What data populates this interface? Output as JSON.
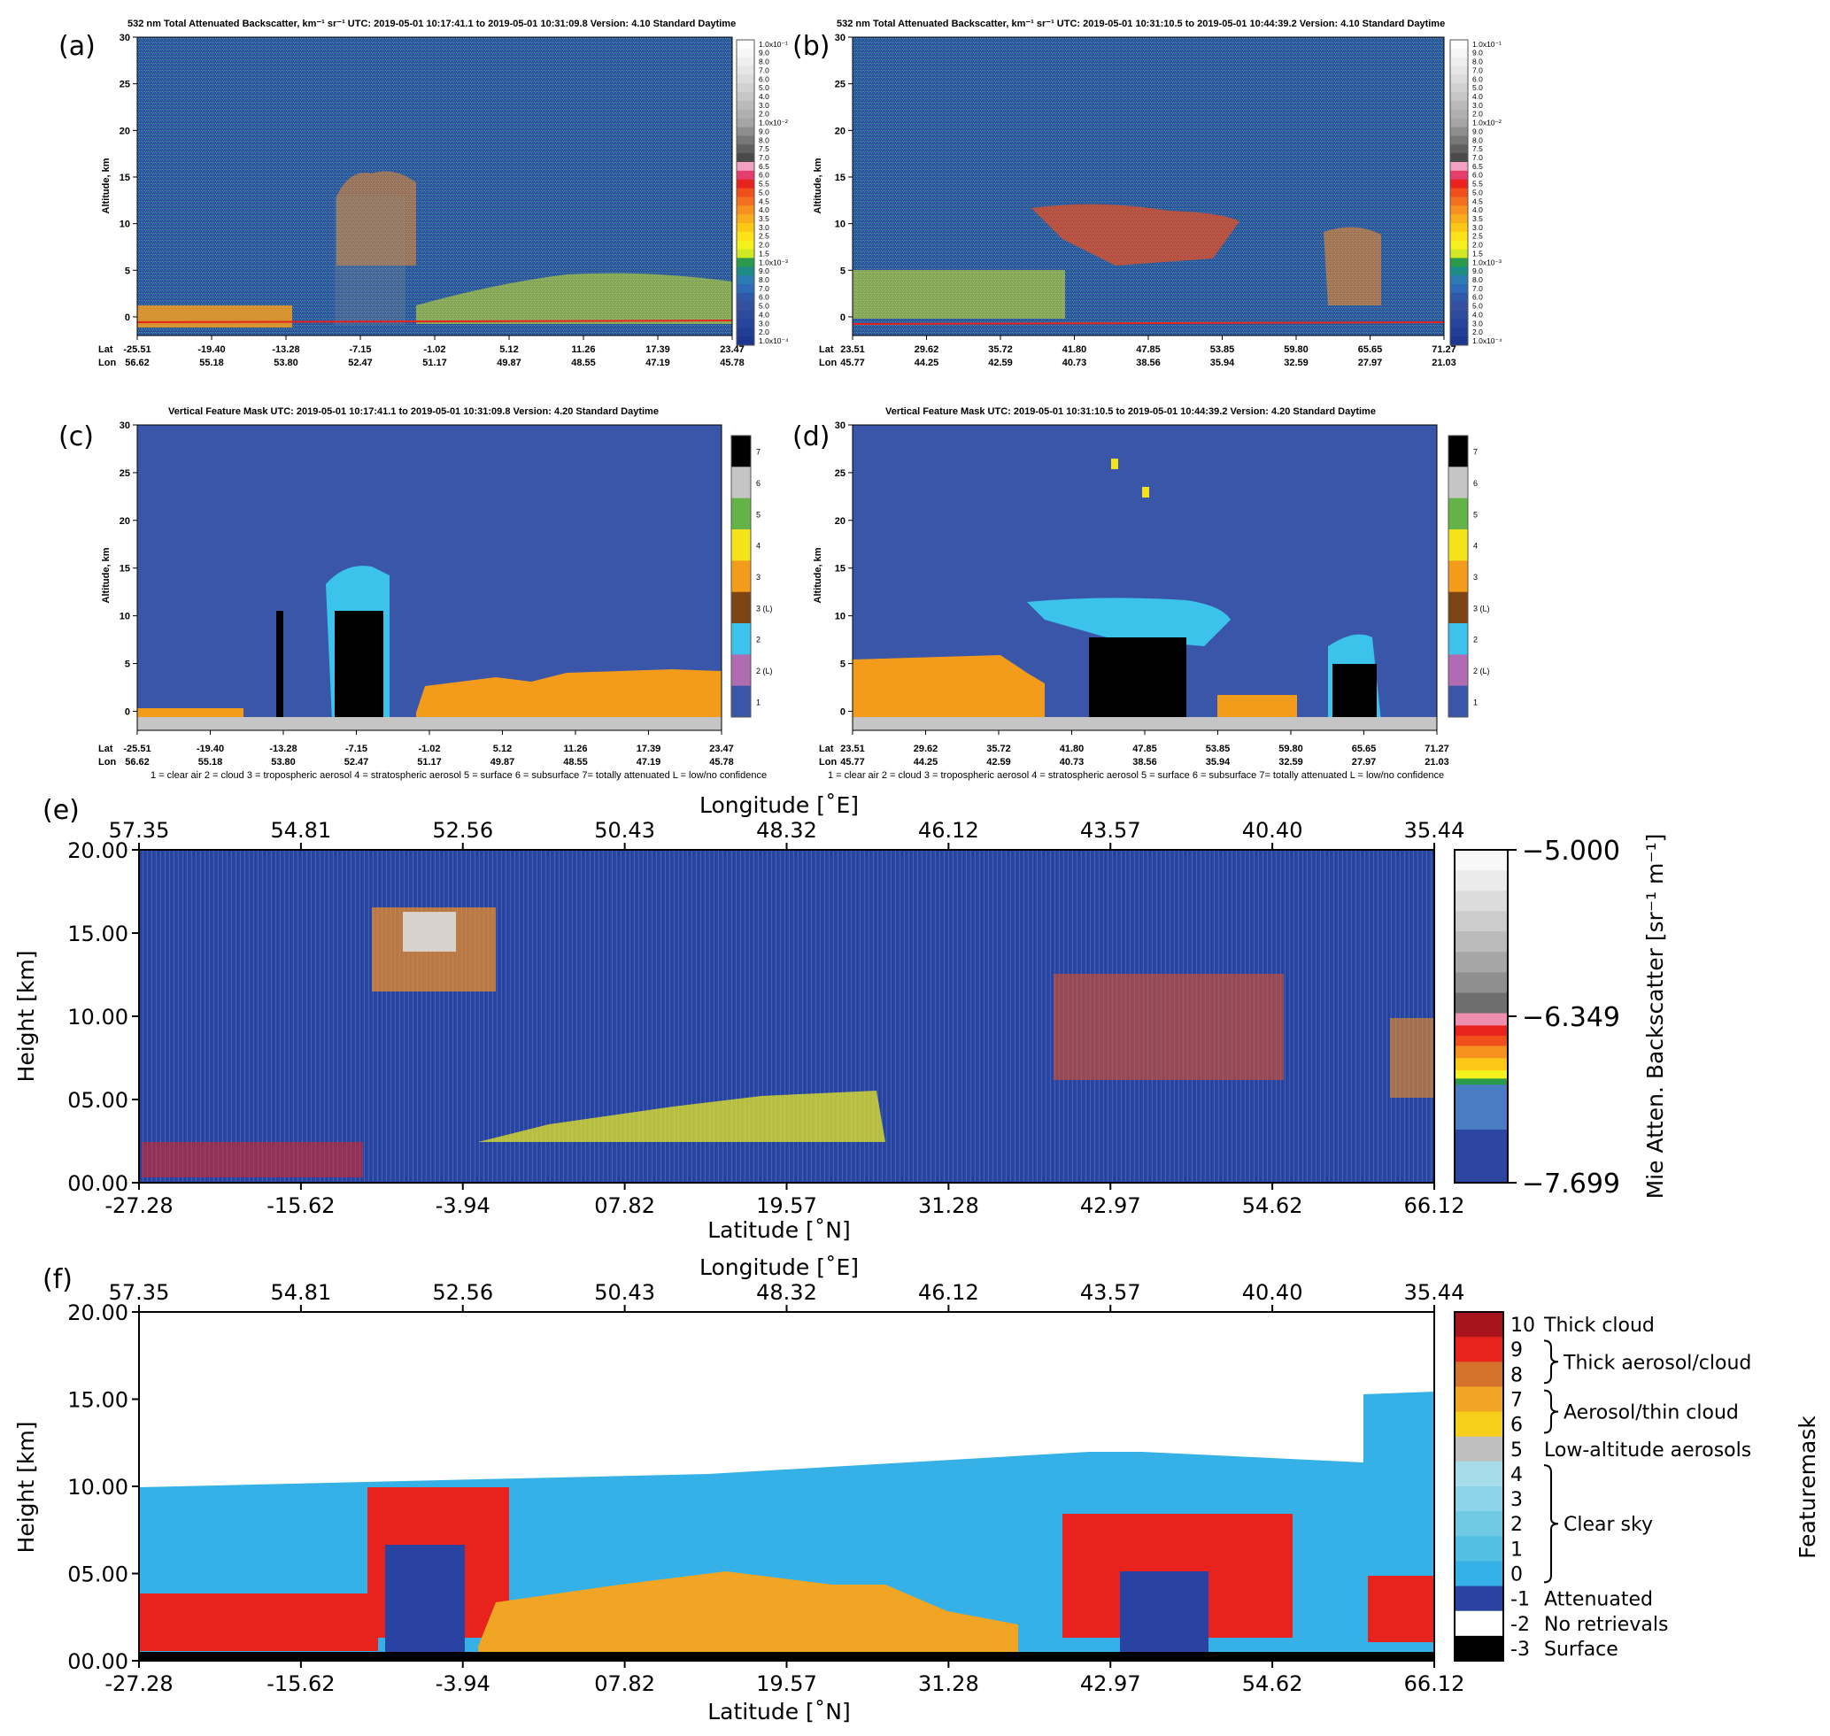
{
  "chart_data": [
    {
      "panel": "(a)",
      "type": "heatmap",
      "title": "532 nm Total Attenuated Backscatter, km⁻¹ sr⁻¹    UTC:  2019-05-01 10:17:41.1  to  2019-05-01 10:31:09.8    Version: 4.10  Standard  Daytime",
      "ylabel": "Altitude, km",
      "ylim": [
        -2,
        30
      ],
      "yticks": [
        "0",
        "5",
        "10",
        "15",
        "20",
        "25",
        "30"
      ],
      "row_lat": "Lat",
      "row_lon": "Lon",
      "lat": [
        "-25.51",
        "-19.40",
        "-13.28",
        "-7.15",
        "-1.02",
        "5.12",
        "11.26",
        "17.39",
        "23.47"
      ],
      "lon": [
        "56.62",
        "55.18",
        "53.80",
        "52.47",
        "51.17",
        "49.87",
        "48.55",
        "47.19",
        "45.78"
      ]
    },
    {
      "panel": "(b)",
      "type": "heatmap",
      "title": "532 nm Total Attenuated Backscatter, km⁻¹ sr⁻¹    UTC:  2019-05-01 10:31:10.5  to  2019-05-01 10:44:39.2    Version: 4.10  Standard  Daytime",
      "ylabel": "Altitude, km",
      "ylim": [
        -2,
        30
      ],
      "yticks": [
        "0",
        "5",
        "10",
        "15",
        "20",
        "25",
        "30"
      ],
      "row_lat": "Lat",
      "row_lon": "Lon",
      "lat": [
        "23.51",
        "29.62",
        "35.72",
        "41.80",
        "47.85",
        "53.85",
        "59.80",
        "65.65",
        "71.27"
      ],
      "lon": [
        "45.77",
        "44.25",
        "42.59",
        "40.73",
        "38.56",
        "35.94",
        "32.59",
        "27.97",
        "21.03"
      ]
    },
    {
      "panel": "(c)",
      "type": "heatmap",
      "title": "Vertical Feature Mask    UTC:  2019-05-01  10:17:41.1  to  2019-05-01  10:31:09.8    Version: 4.20  Standard Daytime",
      "ylabel": "Altitude, km",
      "ylim": [
        -2,
        30
      ],
      "yticks": [
        "0",
        "5",
        "10",
        "15",
        "20",
        "25",
        "30"
      ],
      "row_lat": "Lat",
      "row_lon": "Lon",
      "lat": [
        "-25.51",
        "-19.40",
        "-13.28",
        "-7.15",
        "-1.02",
        "5.12",
        "11.26",
        "17.39",
        "23.47"
      ],
      "lon": [
        "56.62",
        "55.18",
        "53.80",
        "52.47",
        "51.17",
        "49.87",
        "48.55",
        "47.19",
        "45.78"
      ],
      "footnote": "1 = clear air    2 = cloud    3 = tropospheric aerosol    4 = stratospheric aerosol    5 = surface    6 = subsurface    7= totally attenuated    L = low/no confidence"
    },
    {
      "panel": "(d)",
      "type": "heatmap",
      "title": "Vertical Feature Mask    UTC:  2019-05-01  10:31:10.5  to  2019-05-01  10:44:39.2    Version: 4.20  Standard Daytime",
      "ylabel": "Altitude, km",
      "ylim": [
        -2,
        30
      ],
      "yticks": [
        "0",
        "5",
        "10",
        "15",
        "20",
        "25",
        "30"
      ],
      "row_lat": "Lat",
      "row_lon": "Lon",
      "lat": [
        "23.51",
        "29.62",
        "35.72",
        "41.80",
        "47.85",
        "53.85",
        "59.80",
        "65.65",
        "71.27"
      ],
      "lon": [
        "45.77",
        "44.25",
        "42.59",
        "40.73",
        "38.56",
        "35.94",
        "32.59",
        "27.97",
        "21.03"
      ],
      "footnote": "1 = clear air    2 = cloud    3 = tropospheric aerosol    4 = stratospheric aerosol    5 = surface    6 = subsurface    7= totally attenuated    L = low/no confidence"
    },
    {
      "panel": "(e)",
      "type": "heatmap",
      "top_xlabel": "Longitude [˚E]",
      "lon_ticks": [
        "57.35",
        "54.81",
        "52.56",
        "50.43",
        "48.32",
        "46.12",
        "43.57",
        "40.40",
        "35.44"
      ],
      "xlabel": "Latitude [˚N]",
      "lat_ticks": [
        "-27.28",
        "-15.62",
        "-3.94",
        "07.82",
        "19.57",
        "31.28",
        "42.97",
        "54.62",
        "66.12"
      ],
      "ylabel": "Height [km]",
      "ylim": [
        0,
        20
      ],
      "yticks": [
        "00.00",
        "05.00",
        "10.00",
        "15.00",
        "20.00"
      ],
      "colorbar": {
        "label": "Mie Atten. Backscatter [sr⁻¹ m⁻¹]",
        "ticks": [
          "−5.000",
          "−6.349",
          "−7.699"
        ]
      }
    },
    {
      "panel": "(f)",
      "type": "heatmap",
      "top_xlabel": "Longitude [˚E]",
      "lon_ticks": [
        "57.35",
        "54.81",
        "52.56",
        "50.43",
        "48.32",
        "46.12",
        "43.57",
        "40.40",
        "35.44"
      ],
      "xlabel": "Latitude [˚N]",
      "lat_ticks": [
        "-27.28",
        "-15.62",
        "-3.94",
        "07.82",
        "19.57",
        "31.28",
        "42.97",
        "54.62",
        "66.12"
      ],
      "ylabel": "Height [km]",
      "ylim": [
        0,
        20
      ],
      "yticks": [
        "00.00",
        "05.00",
        "10.00",
        "15.00",
        "20.00"
      ],
      "colorbar": {
        "label": "Featuremask",
        "values": [
          "10",
          "9",
          "8",
          "7",
          "6",
          "5",
          "4",
          "3",
          "2",
          "1",
          "0",
          "-1",
          "-2",
          "-3"
        ],
        "colors": [
          "#a8141c",
          "#e8231d",
          "#d4722c",
          "#f0a624",
          "#f5cf19",
          "#bfbfbf",
          "#a7ddea",
          "#8bd3e6",
          "#6fc9e3",
          "#53bfe3",
          "#35b1e8",
          "#2a43a3",
          "#ffffff",
          "#000000"
        ],
        "classes": [
          "Thick cloud",
          "Thick aerosol/cloud",
          "Aerosol/thin cloud",
          "Low-altitude aerosols",
          "Clear sky",
          "Attenuated",
          "No retrievals",
          "Surface"
        ]
      }
    }
  ],
  "panel_labels": [
    "(a)",
    "(b)",
    "(c)",
    "(d)",
    "(e)",
    "(f)"
  ],
  "colors": {
    "bg_blue": "#2f45a2",
    "mask_blue": "#3a56a8",
    "cloud_cyan": "#3cc3ec",
    "aerosol_orange": "#f39c1c",
    "attenuated_black": "#000000",
    "surface_grey": "#c5c5c5",
    "red": "#e8231d",
    "yellow": "#f5e31a",
    "green": "#2aa14a"
  },
  "calipso_colorbar": {
    "labels": [
      "1.0x10⁻¹",
      "9.0",
      "8.0",
      "7.0",
      "6.0",
      "5.0",
      "4.0",
      "3.0",
      "2.0",
      "1.0x10⁻²",
      "9.0",
      "8.0",
      "7.5",
      "7.0",
      "6.5",
      "6.0",
      "5.5",
      "5.0",
      "4.5",
      "4.0",
      "3.5",
      "3.0",
      "2.5",
      "2.0",
      "1.5",
      "1.0x10⁻³",
      "9.0",
      "8.0",
      "7.0",
      "6.0",
      "5.0",
      "4.0",
      "3.0",
      "2.0",
      "1.0x10⁻⁴"
    ],
    "colors": [
      "#ffffff",
      "#f7f7f7",
      "#efefef",
      "#e6e6e6",
      "#dcdcdc",
      "#d1d1d1",
      "#c6c6c6",
      "#bbbbbb",
      "#b0b0b0",
      "#a5a5a5",
      "#8e8e8e",
      "#777777",
      "#606060",
      "#4a4a4a",
      "#f2a1c3",
      "#e53d6c",
      "#e8231d",
      "#f04f1c",
      "#f37021",
      "#f6901f",
      "#f8ad1b",
      "#fbc815",
      "#fde21a",
      "#f4f11d",
      "#d1e825",
      "#2a9a4a",
      "#1d8c85",
      "#2a7bb0",
      "#2f6ab8",
      "#3158a8",
      "#34509f",
      "#2e4a9c",
      "#27439a",
      "#223d95",
      "#1d3690"
    ]
  },
  "vfm_colorbar": {
    "labels": [
      "7",
      "6",
      "5",
      "4",
      "3",
      "3 (L)",
      "2",
      "2 (L)",
      "1"
    ],
    "colors": [
      "#000000",
      "#c5c5c5",
      "#63b349",
      "#f5e31a",
      "#f39c1c",
      "#7d4513",
      "#3cc3ec",
      "#b06bb3",
      "#3a56a8"
    ]
  },
  "e_colorbar_colors": [
    "#f8f8f8",
    "#ebebeb",
    "#dcdcdc",
    "#cccccc",
    "#bbbbbb",
    "#a6a6a6",
    "#8f8f8f",
    "#6e6e6e",
    "#ef8fb0",
    "#e8231d",
    "#f04f1c",
    "#f6901f",
    "#fbc815",
    "#f4f11d",
    "#2a9a4a",
    "#4a7cc4",
    "#2c45a0"
  ]
}
